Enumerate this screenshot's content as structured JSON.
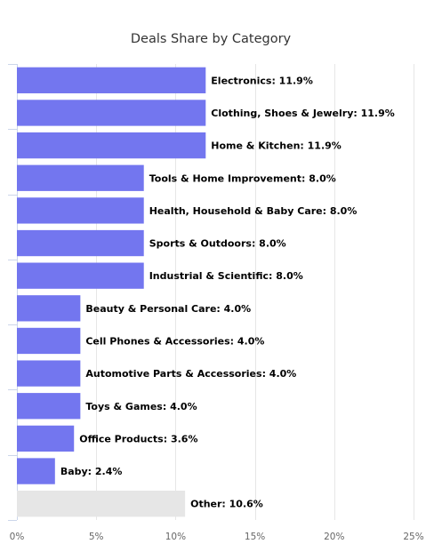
{
  "chart_data": {
    "type": "bar",
    "orientation": "horizontal",
    "title": "Deals Share by Category",
    "xlabel": "",
    "ylabel": "",
    "xlim": [
      0,
      25
    ],
    "x_ticks": [
      0,
      5,
      10,
      15,
      20,
      25
    ],
    "x_tick_labels": [
      "0%",
      "5%",
      "10%",
      "15%",
      "20%",
      "25%"
    ],
    "grid": true,
    "legend": "none",
    "colors": {
      "bar": "#7376ef",
      "other": "#e6e6e6",
      "grid": "#e6e6e6",
      "axis": "#ccd6eb"
    },
    "bars": [
      {
        "category": "Electronics",
        "value": 11.9,
        "label": "Electronics: 11.9%"
      },
      {
        "category": "Clothing, Shoes & Jewelry",
        "value": 11.9,
        "label": "Clothing, Shoes & Jewelry: 11.9%"
      },
      {
        "category": "Home & Kitchen",
        "value": 11.9,
        "label": "Home & Kitchen: 11.9%"
      },
      {
        "category": "Tools & Home Improvement",
        "value": 8.0,
        "label": "Tools & Home Improvement: 8.0%"
      },
      {
        "category": "Health, Household & Baby Care",
        "value": 8.0,
        "label": "Health, Household & Baby Care: 8.0%"
      },
      {
        "category": "Sports & Outdoors",
        "value": 8.0,
        "label": "Sports & Outdoors: 8.0%"
      },
      {
        "category": "Industrial & Scientific",
        "value": 8.0,
        "label": "Industrial & Scientific: 8.0%"
      },
      {
        "category": "Beauty & Personal Care",
        "value": 4.0,
        "label": "Beauty & Personal Care: 4.0%"
      },
      {
        "category": "Cell Phones & Accessories",
        "value": 4.0,
        "label": "Cell Phones & Accessories: 4.0%"
      },
      {
        "category": "Automotive Parts & Accessories",
        "value": 4.0,
        "label": "Automotive Parts & Accessories: 4.0%"
      },
      {
        "category": "Toys & Games",
        "value": 4.0,
        "label": "Toys & Games: 4.0%"
      },
      {
        "category": "Office Products",
        "value": 3.6,
        "label": "Office Products: 3.6%"
      },
      {
        "category": "Baby",
        "value": 2.4,
        "label": "Baby: 2.4%"
      },
      {
        "category": "Other",
        "value": 10.6,
        "label": "Other: 10.6%",
        "is_other": true
      }
    ]
  }
}
